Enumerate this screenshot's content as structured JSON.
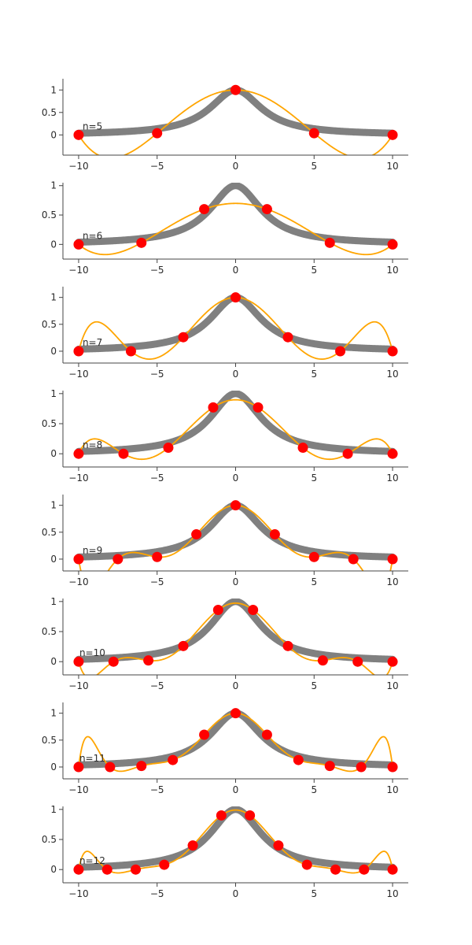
{
  "colors": {
    "reference_curve": "#808080",
    "interpolant": "#ffa500",
    "nodes": "#ff0000",
    "axis": "#444444"
  },
  "chart_data": [
    {
      "type": "line",
      "annotation": "n=5",
      "xlim": [
        -11,
        11
      ],
      "ylim": [
        -0.45,
        1.25
      ],
      "xticks": [
        -10,
        -5,
        0,
        5,
        10
      ],
      "xtick_labels": [
        "−10",
        "−5",
        "0",
        "5",
        "10"
      ],
      "yticks": [
        0,
        0.5,
        1
      ],
      "ytick_labels": [
        "0",
        "0.5",
        "1"
      ],
      "nodes_x": [
        -10,
        -5,
        0,
        5,
        10
      ],
      "nodes_y": [
        0.0,
        0.038,
        1.0,
        0.038,
        0.0
      ]
    },
    {
      "type": "line",
      "annotation": "n=6",
      "xlim": [
        -11,
        11
      ],
      "ylim": [
        -0.25,
        1.05
      ],
      "xticks": [
        -10,
        -5,
        0,
        5,
        10
      ],
      "xtick_labels": [
        "−10",
        "−5",
        "0",
        "5",
        "10"
      ],
      "yticks": [
        0,
        0.5,
        1
      ],
      "ytick_labels": [
        "0",
        "0.5",
        "1"
      ],
      "nodes_x": [
        -10,
        -6,
        -2,
        2,
        6,
        10
      ],
      "nodes_y": [
        0.0,
        0.027,
        0.6,
        0.6,
        0.027,
        0.0
      ]
    },
    {
      "type": "line",
      "annotation": "n=7",
      "xlim": [
        -11,
        11
      ],
      "ylim": [
        -0.22,
        1.2
      ],
      "xticks": [
        -10,
        -5,
        0,
        5,
        10
      ],
      "xtick_labels": [
        "−10",
        "−5",
        "0",
        "5",
        "10"
      ],
      "yticks": [
        0,
        0.5,
        1
      ],
      "ytick_labels": [
        "0",
        "0.5",
        "1"
      ],
      "nodes_x": [
        -10,
        -6.667,
        -3.333,
        0,
        3.333,
        6.667,
        10
      ],
      "nodes_y": [
        0.0,
        0.0,
        0.26,
        1.0,
        0.26,
        0.0,
        0.0
      ]
    },
    {
      "type": "line",
      "annotation": "n=8",
      "xlim": [
        -11,
        11
      ],
      "ylim": [
        -0.22,
        1.05
      ],
      "xticks": [
        -10,
        -5,
        0,
        5,
        10
      ],
      "xtick_labels": [
        "−10",
        "−5",
        "0",
        "5",
        "10"
      ],
      "yticks": [
        0,
        0.5,
        1
      ],
      "ytick_labels": [
        "0",
        "0.5",
        "1"
      ],
      "nodes_x": [
        -10,
        -7.143,
        -4.286,
        -1.429,
        1.429,
        4.286,
        7.143,
        10
      ],
      "nodes_y": [
        0.0,
        0.0,
        0.1,
        0.77,
        0.77,
        0.1,
        0.0,
        0.0
      ]
    },
    {
      "type": "line",
      "annotation": "n=9",
      "xlim": [
        -11,
        11
      ],
      "ylim": [
        -0.22,
        1.2
      ],
      "xticks": [
        -10,
        -5,
        0,
        5,
        10
      ],
      "xtick_labels": [
        "−10",
        "−5",
        "0",
        "5",
        "10"
      ],
      "yticks": [
        0,
        0.5,
        1
      ],
      "ytick_labels": [
        "0",
        "0.5",
        "1"
      ],
      "nodes_x": [
        -10,
        -7.5,
        -5,
        -2.5,
        0,
        2.5,
        5,
        7.5,
        10
      ],
      "nodes_y": [
        0.0,
        0.0,
        0.04,
        0.46,
        1.0,
        0.46,
        0.04,
        0.0,
        0.0
      ]
    },
    {
      "type": "line",
      "annotation": "n=10",
      "xlim": [
        -11,
        11
      ],
      "ylim": [
        -0.22,
        1.05
      ],
      "xticks": [
        -10,
        -5,
        0,
        5,
        10
      ],
      "xtick_labels": [
        "−10",
        "−5",
        "0",
        "5",
        "10"
      ],
      "yticks": [
        0,
        0.5,
        1
      ],
      "ytick_labels": [
        "0",
        "0.5",
        "1"
      ],
      "nodes_x": [
        -10,
        -7.778,
        -5.556,
        -3.333,
        -1.111,
        1.111,
        3.333,
        5.556,
        7.778,
        10
      ],
      "nodes_y": [
        0.0,
        0.0,
        0.02,
        0.26,
        0.86,
        0.86,
        0.26,
        0.02,
        0.0,
        0.0
      ]
    },
    {
      "type": "line",
      "annotation": "n=11",
      "xlim": [
        -11,
        11
      ],
      "ylim": [
        -0.22,
        1.2
      ],
      "xticks": [
        -10,
        -5,
        0,
        5,
        10
      ],
      "xtick_labels": [
        "−10",
        "−5",
        "0",
        "5",
        "10"
      ],
      "yticks": [
        0,
        0.5,
        1
      ],
      "ytick_labels": [
        "0",
        "0.5",
        "1"
      ],
      "nodes_x": [
        -10,
        -8,
        -6,
        -4,
        -2,
        0,
        2,
        4,
        6,
        8,
        10
      ],
      "nodes_y": [
        0.0,
        0.0,
        0.02,
        0.13,
        0.6,
        1.0,
        0.6,
        0.13,
        0.02,
        0.0,
        0.0
      ]
    },
    {
      "type": "line",
      "annotation": "n=12",
      "xlim": [
        -11,
        11
      ],
      "ylim": [
        -0.22,
        1.05
      ],
      "xticks": [
        -10,
        -5,
        0,
        5,
        10
      ],
      "xtick_labels": [
        "−10",
        "−5",
        "0",
        "5",
        "10"
      ],
      "yticks": [
        0,
        0.5,
        1
      ],
      "ytick_labels": [
        "0",
        "0.5",
        "1"
      ],
      "nodes_x": [
        -10,
        -8.182,
        -6.364,
        -4.545,
        -2.727,
        -0.909,
        0.909,
        2.727,
        4.545,
        6.364,
        8.182,
        10
      ],
      "nodes_y": [
        0.0,
        0.0,
        0.0,
        0.08,
        0.4,
        0.9,
        0.9,
        0.4,
        0.08,
        0.0,
        0.0,
        0.0
      ]
    }
  ]
}
